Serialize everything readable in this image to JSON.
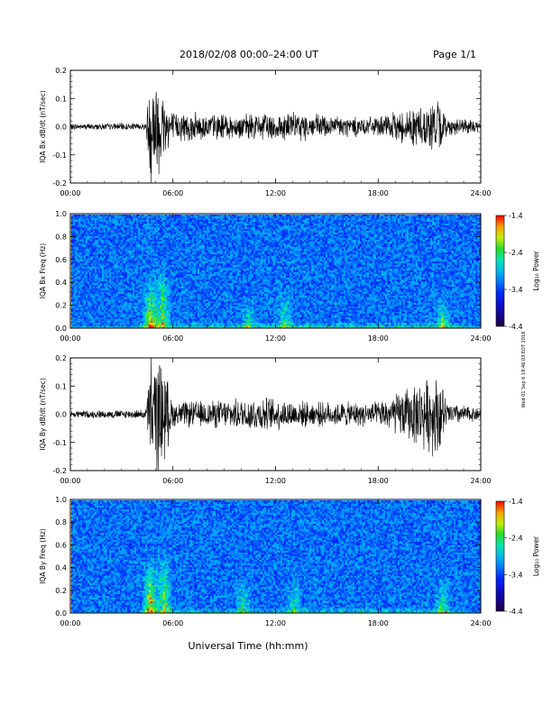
{
  "header": {
    "title": "2018/02/08  00:00–24:00 UT",
    "page": "Page 1/1"
  },
  "footer": {
    "xlabel": "Universal Time (hh:mm)",
    "side_note": "Wed 01 Sep 6 18:46:03 EDT 2018"
  },
  "colorbar": {
    "label": "Log₁₀ Power",
    "ticks": [
      "-1.4",
      "-2.4",
      "-3.4",
      "-4.4"
    ],
    "min": -4.4,
    "max": -1.4
  },
  "chart_data": [
    {
      "type": "line",
      "ylabel": "IQA Bx dB/dt (nT/sec)",
      "x_ticks": [
        "00:00",
        "06:00",
        "12:00",
        "18:00",
        "24:00"
      ],
      "xlim": [
        0,
        24
      ],
      "ylim": [
        -0.2,
        0.2
      ],
      "y_ticks": [
        "0.2",
        "0.1",
        "0.0",
        "-0.1",
        "-0.2"
      ],
      "series": [
        {
          "values_envelope": [
            {
              "t": 0,
              "amp": 0.01
            },
            {
              "t": 4.4,
              "amp": 0.012
            },
            {
              "t": 4.7,
              "amp": 0.2
            },
            {
              "t": 5.3,
              "amp": 0.15
            },
            {
              "t": 6,
              "amp": 0.05
            },
            {
              "t": 10,
              "amp": 0.04
            },
            {
              "t": 12.5,
              "amp": 0.05
            },
            {
              "t": 15,
              "amp": 0.04
            },
            {
              "t": 18,
              "amp": 0.03
            },
            {
              "t": 21.5,
              "amp": 0.09
            },
            {
              "t": 22,
              "amp": 0.03
            },
            {
              "t": 24,
              "amp": 0.02
            }
          ]
        }
      ]
    },
    {
      "type": "heatmap",
      "ylabel": "IQA Bx Freq (Hz)",
      "x_ticks": [
        "00:00",
        "06:00",
        "12:00",
        "18:00",
        "24:00"
      ],
      "xlim": [
        0,
        24
      ],
      "ylim": [
        0,
        1.0
      ],
      "y_ticks": [
        "1.0",
        "0.8",
        "0.6",
        "0.4",
        "0.2",
        "0.0"
      ],
      "hotspots": [
        {
          "t": 4.6,
          "f_max": 0.5,
          "strength": 1.0
        },
        {
          "t": 5.3,
          "f_max": 0.6,
          "strength": 0.7
        },
        {
          "t": 10.3,
          "f_max": 0.3,
          "strength": 0.45
        },
        {
          "t": 12.5,
          "f_max": 0.4,
          "strength": 0.5
        },
        {
          "t": 21.7,
          "f_max": 0.3,
          "strength": 0.6
        }
      ]
    },
    {
      "type": "line",
      "ylabel": "IQA By dB/dt (nT/sec)",
      "x_ticks": [
        "00:00",
        "06:00",
        "12:00",
        "18:00",
        "24:00"
      ],
      "xlim": [
        0,
        24
      ],
      "ylim": [
        -0.2,
        0.2
      ],
      "y_ticks": [
        "0.2",
        "0.1",
        "0.0",
        "-0.1",
        "-0.2"
      ],
      "series": [
        {
          "values_envelope": [
            {
              "t": 0,
              "amp": 0.012
            },
            {
              "t": 4.4,
              "amp": 0.015
            },
            {
              "t": 4.7,
              "amp": 0.2
            },
            {
              "t": 5.4,
              "amp": 0.18
            },
            {
              "t": 6,
              "amp": 0.04
            },
            {
              "t": 10,
              "amp": 0.05
            },
            {
              "t": 11,
              "amp": 0.06
            },
            {
              "t": 14,
              "amp": 0.04
            },
            {
              "t": 18,
              "amp": 0.04
            },
            {
              "t": 21.6,
              "amp": 0.14
            },
            {
              "t": 22,
              "amp": 0.04
            },
            {
              "t": 24,
              "amp": 0.02
            }
          ]
        }
      ]
    },
    {
      "type": "heatmap",
      "ylabel": "IQA By Freq (Hz)",
      "x_ticks": [
        "00:00",
        "06:00",
        "12:00",
        "18:00",
        "24:00"
      ],
      "xlim": [
        0,
        24
      ],
      "ylim": [
        0,
        1.0
      ],
      "y_ticks": [
        "1.0",
        "0.8",
        "0.6",
        "0.4",
        "0.2",
        "0.0"
      ],
      "hotspots": [
        {
          "t": 4.6,
          "f_max": 0.55,
          "strength": 1.0
        },
        {
          "t": 5.4,
          "f_max": 0.6,
          "strength": 0.75
        },
        {
          "t": 10.0,
          "f_max": 0.35,
          "strength": 0.5
        },
        {
          "t": 13.0,
          "f_max": 0.4,
          "strength": 0.45
        },
        {
          "t": 21.7,
          "f_max": 0.35,
          "strength": 0.6
        }
      ]
    }
  ]
}
